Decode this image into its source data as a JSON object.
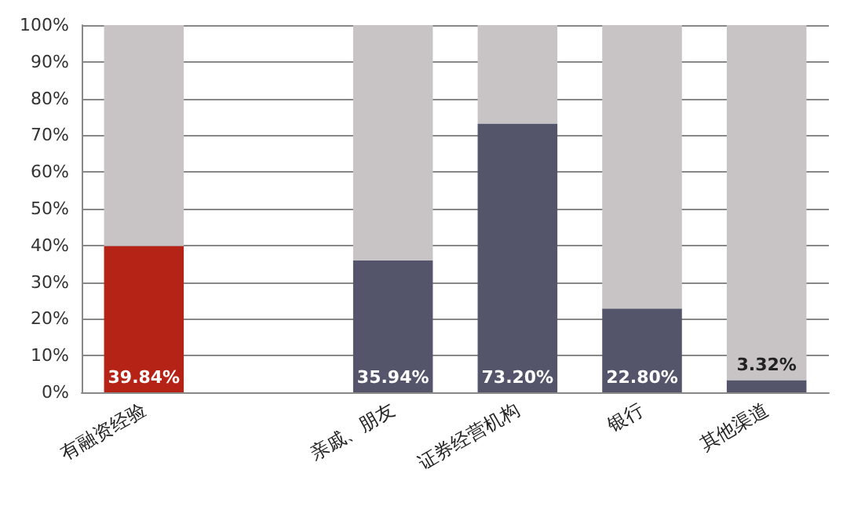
{
  "chart_data": {
    "type": "bar",
    "stacked": true,
    "categories": [
      "有融资经验",
      null,
      "亲戚、朋友",
      "证券经营机构",
      "银行",
      "其他渠道"
    ],
    "series": [
      {
        "colors": [
          "#b52317",
          null,
          "#54546a",
          "#54546a",
          "#54546a",
          "#54546a"
        ],
        "values": [
          39.84,
          null,
          35.94,
          73.2,
          22.8,
          3.32
        ],
        "value_labels": [
          "39.84%",
          null,
          "35.94%",
          "73.20%",
          "22.80%",
          "3.32%"
        ]
      },
      {
        "color": "#c8c4c6",
        "values": [
          60.2,
          null,
          64.1,
          26.8,
          77.2,
          96.7
        ]
      }
    ],
    "ylim": [
      0,
      100
    ],
    "yticks": [
      {
        "value": 0,
        "label": "0%"
      },
      {
        "value": 10,
        "label": "10%"
      },
      {
        "value": 20,
        "label": "20%"
      },
      {
        "value": 30,
        "label": "30%"
      },
      {
        "value": 40,
        "label": "40%"
      },
      {
        "value": 50,
        "label": "50%"
      },
      {
        "value": 60,
        "label": "60%"
      },
      {
        "value": 70,
        "label": "70%"
      },
      {
        "value": 80,
        "label": "80%"
      },
      {
        "value": 90,
        "label": "90%"
      },
      {
        "value": 100,
        "label": "100%"
      }
    ],
    "grid": "y"
  }
}
